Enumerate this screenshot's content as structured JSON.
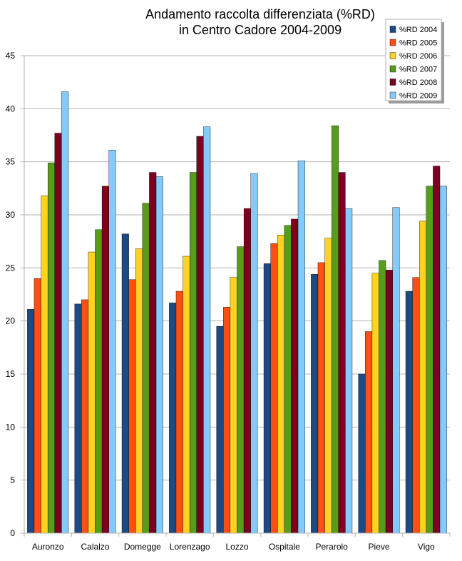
{
  "chart_data": {
    "type": "bar",
    "title_lines": [
      "Andamento raccolta differenziata (%RD)",
      "in Centro Cadore  2004-2009"
    ],
    "xlabel": "",
    "ylabel": "",
    "ylim": [
      0,
      45
    ],
    "yticks": [
      0,
      5,
      10,
      15,
      20,
      25,
      30,
      35,
      40,
      45
    ],
    "grid": true,
    "legend_position": "top-right",
    "categories": [
      "Auronzo",
      "Calalzo",
      "Domegge",
      "Lorenzago",
      "Lozzo",
      "Ospitale",
      "Perarolo",
      "Pieve",
      "Vigo"
    ],
    "series": [
      {
        "name": "%RD 2004",
        "color": "#1b4a85",
        "values": [
          21.1,
          21.6,
          28.2,
          21.7,
          19.5,
          25.4,
          24.4,
          15.0,
          22.8
        ]
      },
      {
        "name": "%RD 2005",
        "color": "#ff4f14",
        "values": [
          24.0,
          22.0,
          23.9,
          22.8,
          21.3,
          27.3,
          25.5,
          19.0,
          24.1
        ]
      },
      {
        "name": "%RD 2006",
        "color": "#ffd320",
        "values": [
          31.8,
          26.5,
          26.8,
          26.1,
          24.1,
          28.1,
          27.8,
          24.5,
          29.4
        ]
      },
      {
        "name": "%RD 2007",
        "color": "#579d1c",
        "values": [
          34.9,
          28.6,
          31.1,
          34.0,
          27.0,
          29.0,
          38.4,
          25.7,
          32.7
        ]
      },
      {
        "name": "%RD 2008",
        "color": "#7e0021",
        "values": [
          37.7,
          32.7,
          34.0,
          37.4,
          30.6,
          29.6,
          34.0,
          24.8,
          34.6
        ]
      },
      {
        "name": "%RD 2009",
        "color": "#83caff",
        "values": [
          41.6,
          36.1,
          33.6,
          38.3,
          33.9,
          35.1,
          30.6,
          30.7,
          32.7
        ]
      }
    ]
  }
}
